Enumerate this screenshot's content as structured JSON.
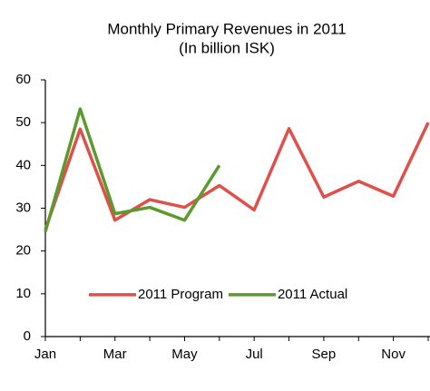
{
  "chart_data": {
    "type": "line",
    "title": "Monthly Primary Revenues in 2011",
    "subtitle": "(In billion ISK)",
    "categories": [
      "Jan",
      null,
      "Mar",
      null,
      "May",
      null,
      "Jul",
      null,
      "Sep",
      null,
      "Nov",
      null
    ],
    "series": [
      {
        "name": "2011 Program",
        "color": "#e0504a",
        "values": [
          25,
          48.5,
          27.2,
          32,
          30.2,
          35.3,
          29.6,
          48.6,
          32.6,
          36.3,
          32.8,
          50
        ]
      },
      {
        "name": "2011 Actual",
        "color": "#5c9a2e",
        "values": [
          24.5,
          53.2,
          28.7,
          30.2,
          27.2,
          40,
          null,
          null,
          null,
          null,
          null,
          null
        ]
      }
    ],
    "ylim": [
      0,
      60
    ],
    "yticks": [
      0,
      10,
      20,
      30,
      40,
      50,
      60
    ],
    "legend": "bottom-center",
    "grid": false
  }
}
